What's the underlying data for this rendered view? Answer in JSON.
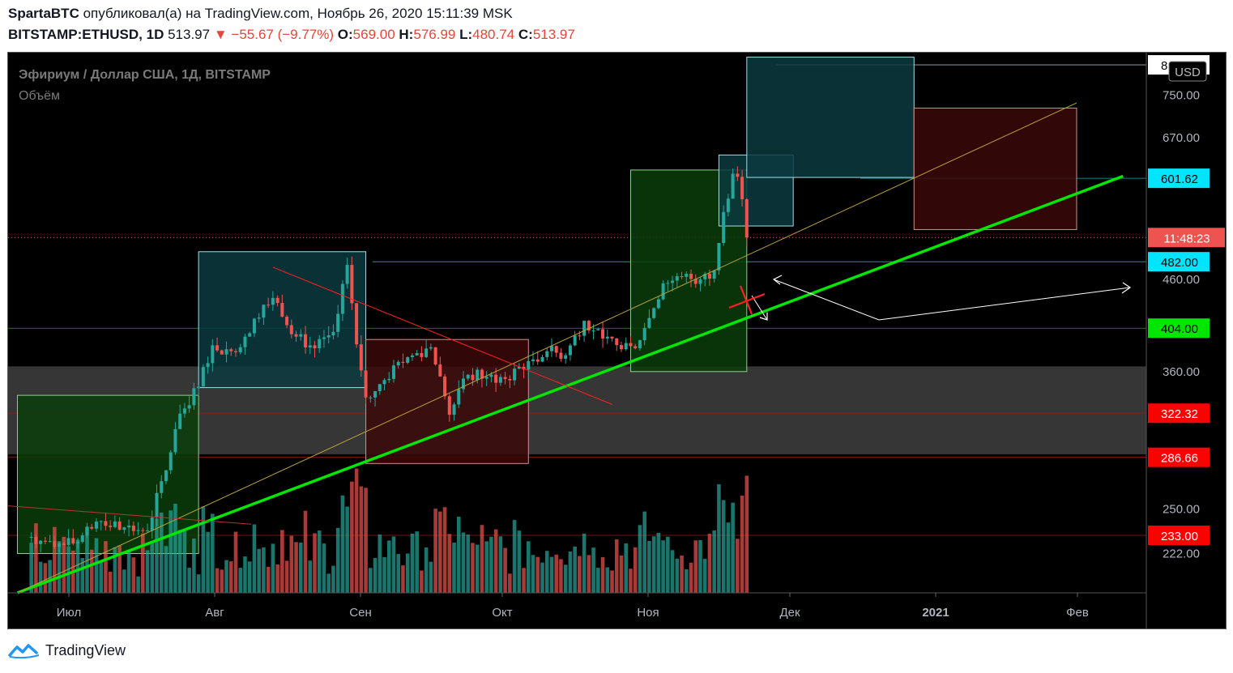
{
  "header": {
    "author": "SpartaBTC",
    "published_text": "опубликовал(а) на TradingView.com, Ноябрь 26, 2020 15:11:39 MSK",
    "symbol": "BITSTAMP:ETHUSD, 1D",
    "last": "513.97",
    "arrow": "▼",
    "change": "−55.67 (−9.77%)",
    "o_label": "O:",
    "o_value": "569.00",
    "h_label": "H:",
    "h_value": "576.99",
    "l_label": "L:",
    "l_value": "480.74",
    "c_label": "C:",
    "c_value": "513.97"
  },
  "legend": {
    "title": "Эфириум / Доллар США, 1Д, BITSTAMP",
    "volume": "Объём"
  },
  "currency_button": "USD",
  "price_axis_ticks": [
    "750.00",
    "670.00",
    "460.00",
    "360.00",
    "250.00",
    "222.00"
  ],
  "price_labels": [
    {
      "value": "813.18",
      "bg": "#ffffff",
      "fg": "#000000"
    },
    {
      "value": "601.62",
      "bg": "#00e5ff",
      "fg": "#000000"
    },
    {
      "value": "11:48:23",
      "bg": "#ef5350",
      "fg": "#ffffff"
    },
    {
      "value": "482.00",
      "bg": "#00e5ff",
      "fg": "#000000"
    },
    {
      "value": "404.00",
      "bg": "#00e600",
      "fg": "#000000"
    },
    {
      "value": "322.32",
      "bg": "#ff0000",
      "fg": "#ffffff"
    },
    {
      "value": "286.66",
      "bg": "#ff0000",
      "fg": "#ffffff"
    },
    {
      "value": "233.00",
      "bg": "#ff0000",
      "fg": "#ffffff"
    }
  ],
  "time_axis": [
    "Июл",
    "Авг",
    "Сен",
    "Окт",
    "Ноя",
    "Дек",
    "2021",
    "Фев"
  ],
  "footer": {
    "brand": "TradingView"
  },
  "chart_data": {
    "type": "candlestick",
    "symbol": "BITSTAMP:ETHUSD",
    "timeframe": "1D",
    "y_scale": "log",
    "ylim": [
      200,
      840
    ],
    "x_range": [
      "2020-06-20",
      "2021-02-20"
    ],
    "colors": {
      "up": "#26a69a",
      "down": "#ef5350"
    },
    "key_levels": [
      813.18,
      601.62,
      482.0,
      404.0,
      322.32,
      286.66,
      233.0
    ],
    "closes": [
      {
        "date": "2020-06-25",
        "close": 232
      },
      {
        "date": "2020-06-30",
        "close": 226
      },
      {
        "date": "2020-07-05",
        "close": 229
      },
      {
        "date": "2020-07-10",
        "close": 242
      },
      {
        "date": "2020-07-15",
        "close": 238
      },
      {
        "date": "2020-07-20",
        "close": 236
      },
      {
        "date": "2020-07-24",
        "close": 277
      },
      {
        "date": "2020-07-27",
        "close": 322
      },
      {
        "date": "2020-07-31",
        "close": 346
      },
      {
        "date": "2020-08-03",
        "close": 386
      },
      {
        "date": "2020-08-07",
        "close": 380
      },
      {
        "date": "2020-08-10",
        "close": 395
      },
      {
        "date": "2020-08-14",
        "close": 430
      },
      {
        "date": "2020-08-17",
        "close": 432
      },
      {
        "date": "2020-08-21",
        "close": 395
      },
      {
        "date": "2020-08-25",
        "close": 383
      },
      {
        "date": "2020-08-29",
        "close": 400
      },
      {
        "date": "2020-09-01",
        "close": 478
      },
      {
        "date": "2020-09-03",
        "close": 387
      },
      {
        "date": "2020-09-05",
        "close": 336
      },
      {
        "date": "2020-09-09",
        "close": 352
      },
      {
        "date": "2020-09-14",
        "close": 374
      },
      {
        "date": "2020-09-19",
        "close": 384
      },
      {
        "date": "2020-09-23",
        "close": 321
      },
      {
        "date": "2020-09-27",
        "close": 357
      },
      {
        "date": "2020-10-01",
        "close": 355
      },
      {
        "date": "2020-10-05",
        "close": 353
      },
      {
        "date": "2020-10-10",
        "close": 370
      },
      {
        "date": "2020-10-14",
        "close": 380
      },
      {
        "date": "2020-10-18",
        "close": 376
      },
      {
        "date": "2020-10-22",
        "close": 412
      },
      {
        "date": "2020-10-26",
        "close": 393
      },
      {
        "date": "2020-10-30",
        "close": 382
      },
      {
        "date": "2020-11-02",
        "close": 383
      },
      {
        "date": "2020-11-05",
        "close": 415
      },
      {
        "date": "2020-11-08",
        "close": 455
      },
      {
        "date": "2020-11-12",
        "close": 463
      },
      {
        "date": "2020-11-16",
        "close": 460
      },
      {
        "date": "2020-11-19",
        "close": 471
      },
      {
        "date": "2020-11-21",
        "close": 550
      },
      {
        "date": "2020-11-23",
        "close": 609
      },
      {
        "date": "2020-11-24",
        "close": 604
      },
      {
        "date": "2020-11-25",
        "close": 569
      },
      {
        "date": "2020-11-26",
        "close": 514
      }
    ],
    "annotations": [
      {
        "type": "rect",
        "color": "green",
        "from": "2020-06-22",
        "to": "2020-07-31",
        "y": [
          222,
          338
        ]
      },
      {
        "type": "rect",
        "color": "teal",
        "from": "2020-07-31",
        "to": "2020-09-05",
        "y": [
          345,
          495
        ]
      },
      {
        "type": "rect",
        "color": "red",
        "from": "2020-09-05",
        "to": "2020-10-10",
        "y": [
          282,
          392
        ]
      },
      {
        "type": "rect",
        "color": "green",
        "from": "2020-11-01",
        "to": "2020-11-26",
        "y": [
          360,
          615
        ]
      },
      {
        "type": "rect",
        "color": "teal",
        "from": "2020-11-20",
        "to": "2020-12-06",
        "y": [
          530,
          640
        ]
      },
      {
        "type": "rect",
        "color": "teal",
        "from": "2020-11-26",
        "to": "2021-01-01",
        "y": [
          603,
          830
        ]
      },
      {
        "type": "rect",
        "color": "red",
        "from": "2021-01-01",
        "to": "2021-02-05",
        "y": [
          525,
          725
        ]
      },
      {
        "type": "trendline",
        "color": "#00e600",
        "from": [
          "2020-06-22",
          200
        ],
        "to": [
          "2021-02-15",
          605
        ]
      },
      {
        "type": "trendline",
        "color": "#b8a13a",
        "from": [
          "2020-06-22",
          200
        ],
        "to": [
          "2021-02-05",
          735
        ]
      },
      {
        "type": "trendline",
        "color": "#ff2020",
        "from": [
          "2020-08-16",
          475
        ],
        "to": [
          "2020-10-28",
          330
        ]
      }
    ]
  }
}
